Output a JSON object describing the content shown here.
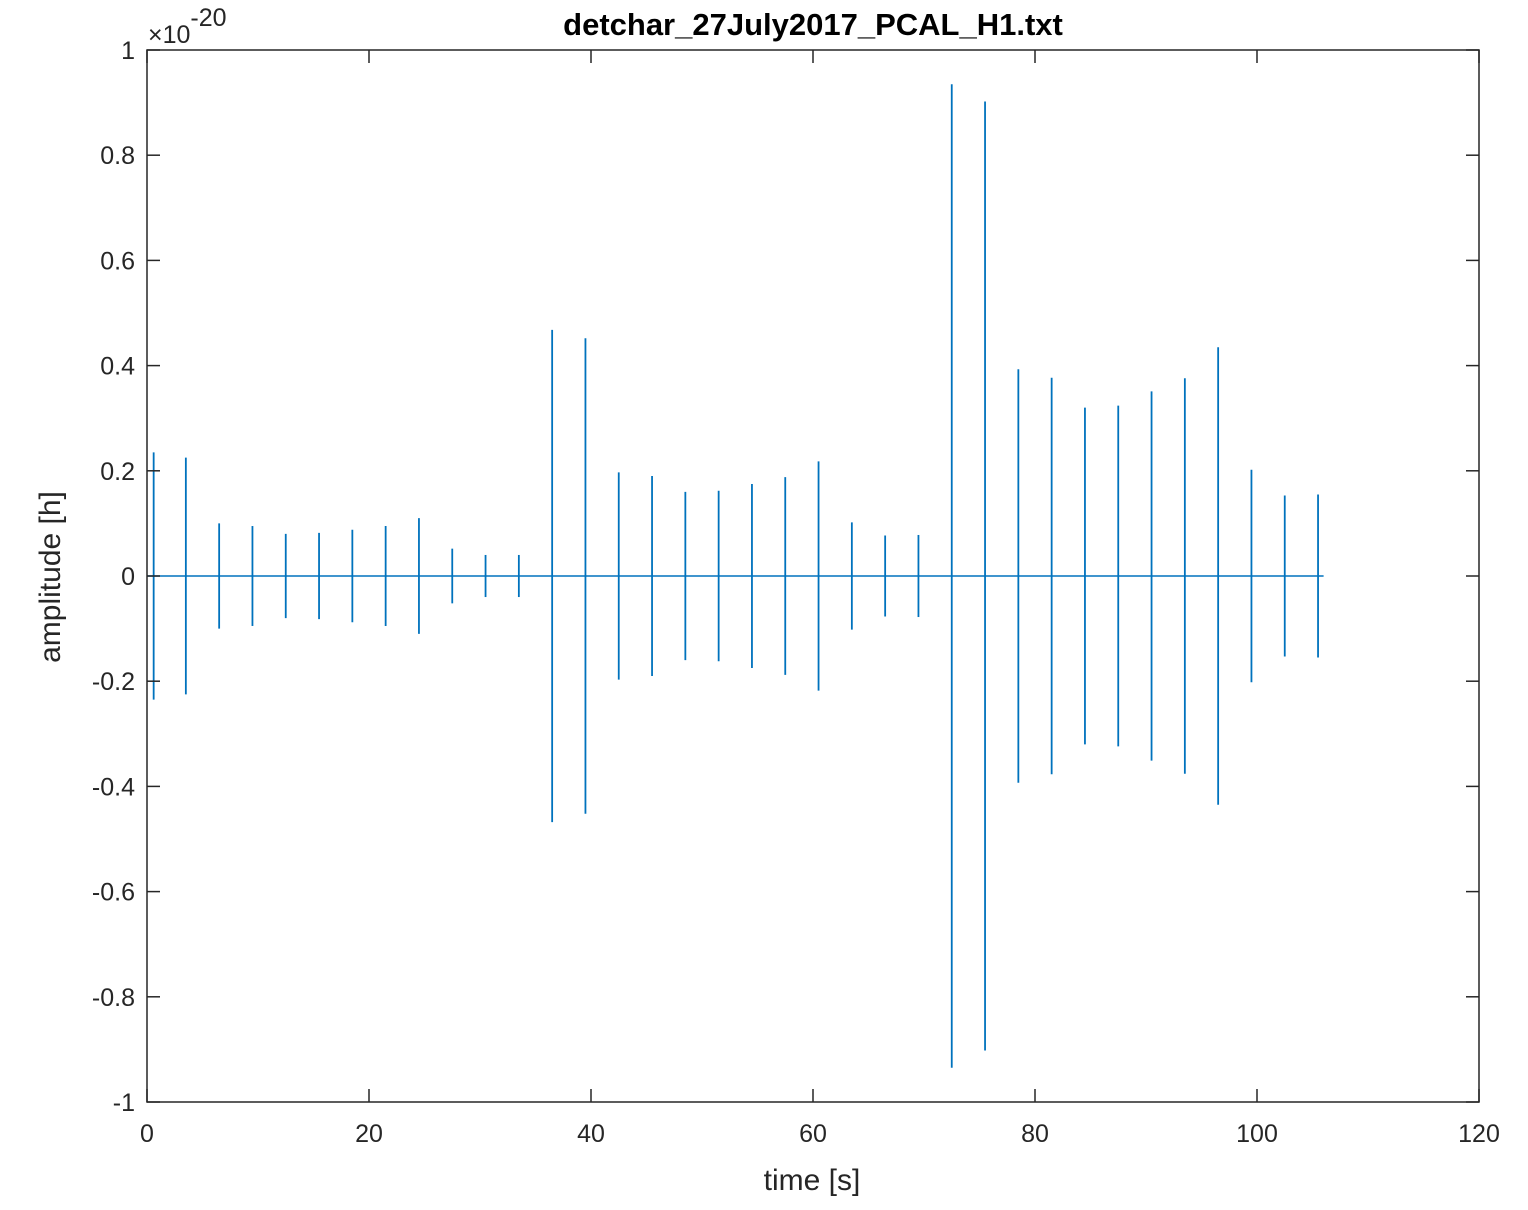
{
  "chart_data": {
    "type": "line",
    "title": "detchar_27July2017_PCAL_H1.txt",
    "xlabel": "time [s]",
    "ylabel": "amplitude [h]",
    "y_exponent_base": "×10",
    "y_exponent_power": "-20",
    "xlim": [
      0,
      120
    ],
    "ylim": [
      -1,
      1
    ],
    "grid": false,
    "x_ticks": [
      0,
      20,
      40,
      60,
      80,
      100,
      120
    ],
    "x_tick_labels": [
      "0",
      "20",
      "40",
      "60",
      "80",
      "100",
      "120"
    ],
    "y_ticks": [
      -1,
      -0.8,
      -0.6,
      -0.4,
      -0.2,
      0,
      0.2,
      0.4,
      0.6,
      0.8,
      1
    ],
    "y_tick_labels": [
      "-1",
      "-0.8",
      "-0.6",
      "-0.4",
      "-0.2",
      "0",
      "0.2",
      "0.4",
      "0.6",
      "0.8",
      "1"
    ],
    "line_color": "#0072BD",
    "baseline_x_range": [
      0,
      106
    ],
    "series": [
      {
        "spikes": [
          {
            "t": 0.6,
            "amp": 0.235
          },
          {
            "t": 3.5,
            "amp": 0.225
          },
          {
            "t": 6.5,
            "amp": 0.1
          },
          {
            "t": 9.5,
            "amp": 0.095
          },
          {
            "t": 12.5,
            "amp": 0.08
          },
          {
            "t": 15.5,
            "amp": 0.082
          },
          {
            "t": 18.5,
            "amp": 0.088
          },
          {
            "t": 21.5,
            "amp": 0.095
          },
          {
            "t": 24.5,
            "amp": 0.11
          },
          {
            "t": 27.5,
            "amp": 0.052
          },
          {
            "t": 30.5,
            "amp": 0.04
          },
          {
            "t": 33.5,
            "amp": 0.04
          },
          {
            "t": 36.5,
            "amp": 0.468
          },
          {
            "t": 39.5,
            "amp": 0.452
          },
          {
            "t": 42.5,
            "amp": 0.197
          },
          {
            "t": 45.5,
            "amp": 0.19
          },
          {
            "t": 48.5,
            "amp": 0.16
          },
          {
            "t": 51.5,
            "amp": 0.162
          },
          {
            "t": 54.5,
            "amp": 0.175
          },
          {
            "t": 57.5,
            "amp": 0.188
          },
          {
            "t": 60.5,
            "amp": 0.218
          },
          {
            "t": 63.5,
            "amp": 0.102
          },
          {
            "t": 66.5,
            "amp": 0.077
          },
          {
            "t": 69.5,
            "amp": 0.078
          },
          {
            "t": 72.5,
            "amp": 0.935
          },
          {
            "t": 75.5,
            "amp": 0.902
          },
          {
            "t": 78.5,
            "amp": 0.393
          },
          {
            "t": 81.5,
            "amp": 0.377
          },
          {
            "t": 84.5,
            "amp": 0.32
          },
          {
            "t": 87.5,
            "amp": 0.324
          },
          {
            "t": 90.5,
            "amp": 0.351
          },
          {
            "t": 93.5,
            "amp": 0.376
          },
          {
            "t": 96.5,
            "amp": 0.435
          },
          {
            "t": 99.5,
            "amp": 0.202
          },
          {
            "t": 102.5,
            "amp": 0.153
          },
          {
            "t": 105.5,
            "amp": 0.155
          }
        ]
      }
    ]
  }
}
